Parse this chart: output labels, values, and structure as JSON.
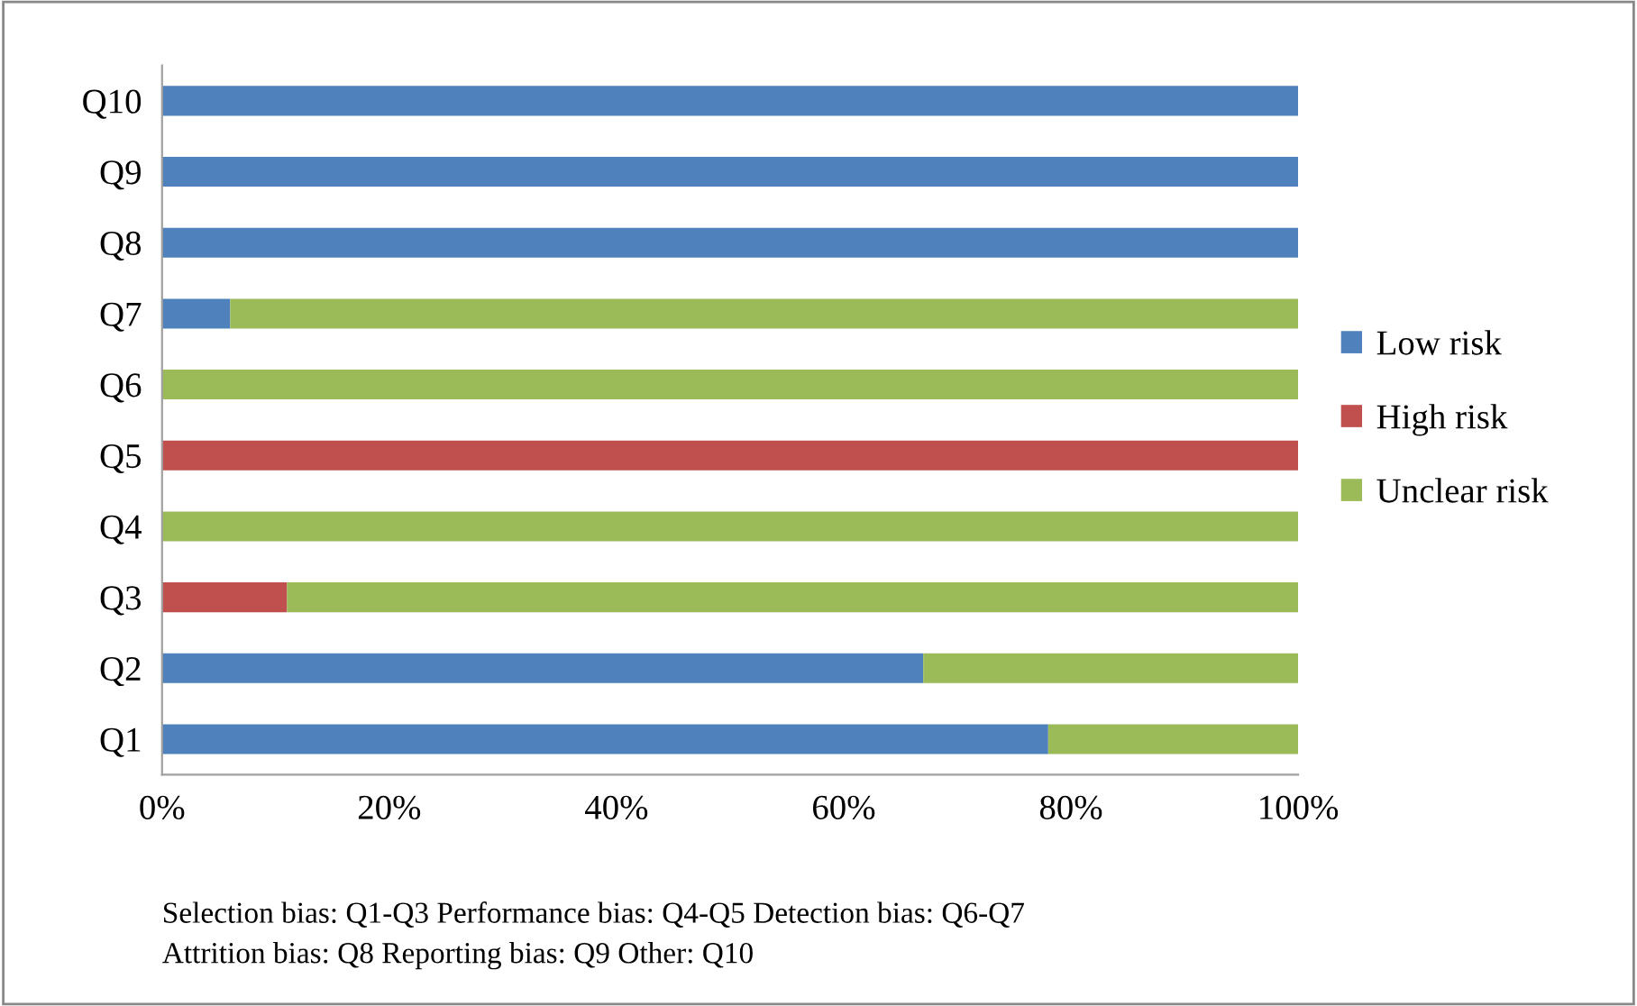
{
  "chart_data": {
    "type": "bar",
    "orientation": "horizontal",
    "stacked": true,
    "categories": [
      "Q10",
      "Q9",
      "Q8",
      "Q7",
      "Q6",
      "Q5",
      "Q4",
      "Q3",
      "Q2",
      "Q1"
    ],
    "series": [
      {
        "name": "Low risk",
        "color": "#4f81bd",
        "values": [
          100,
          100,
          100,
          6,
          0,
          0,
          0,
          0,
          67,
          78
        ]
      },
      {
        "name": "High risk",
        "color": "#c0504d",
        "values": [
          0,
          0,
          0,
          0,
          0,
          100,
          0,
          11,
          0,
          0
        ]
      },
      {
        "name": "Unclear risk",
        "color": "#9bbb59",
        "values": [
          0,
          0,
          0,
          94,
          100,
          0,
          100,
          89,
          33,
          22
        ]
      }
    ],
    "xlim": [
      0,
      100
    ],
    "xticks": [
      {
        "value": 0,
        "label": "0%"
      },
      {
        "value": 20,
        "label": "20%"
      },
      {
        "value": 40,
        "label": "40%"
      },
      {
        "value": 60,
        "label": "60%"
      },
      {
        "value": 80,
        "label": "80%"
      },
      {
        "value": 100,
        "label": "100%"
      }
    ],
    "grid": false,
    "legend": "right",
    "annotations": [
      "Selection bias: Q1-Q3 Performance bias: Q4-Q5 Detection bias: Q6-Q7",
      "Attrition bias: Q8 Reporting bias: Q9 Other: Q10"
    ]
  }
}
